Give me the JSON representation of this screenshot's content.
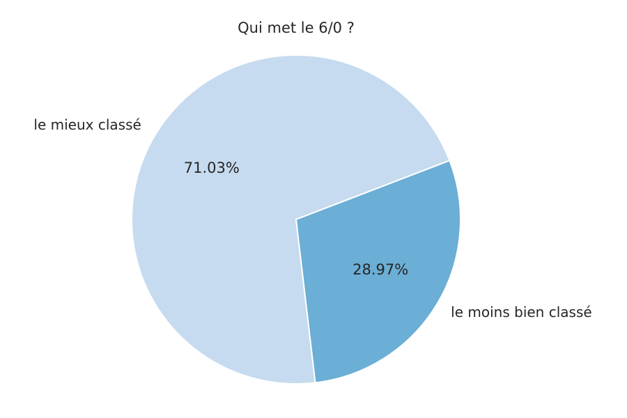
{
  "chart_data": {
    "type": "pie",
    "title": "Qui met le 6/0 ?",
    "slices": [
      {
        "label": "le mieux classé",
        "value": 71.03,
        "pct_label": "71.03%",
        "color": "#c6dbef"
      },
      {
        "label": "le moins bien classé",
        "value": 28.97,
        "pct_label": "28.97%",
        "color": "#6baed6"
      }
    ],
    "legend": "none"
  }
}
